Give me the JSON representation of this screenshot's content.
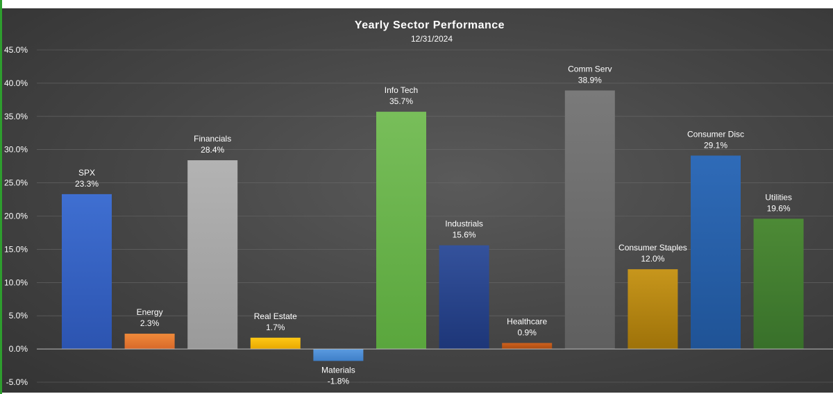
{
  "chart_data": {
    "type": "bar",
    "title": "Yearly Sector Performance",
    "subtitle": "12/31/2024",
    "xlabel": "",
    "ylabel": "",
    "ylim": [
      -5,
      45
    ],
    "yticks": [
      "-5.0%",
      "0.0%",
      "5.0%",
      "10.0%",
      "15.0%",
      "20.0%",
      "25.0%",
      "30.0%",
      "35.0%",
      "40.0%",
      "45.0%"
    ],
    "ytick_values": [
      -5,
      0,
      5,
      10,
      15,
      20,
      25,
      30,
      35,
      40,
      45
    ],
    "grid": true,
    "bars": [
      {
        "name": "SPX",
        "value": 23.3,
        "label": "23.3%",
        "color": "#3f6fd1",
        "color2": "#2c54b0"
      },
      {
        "name": "Energy",
        "value": 2.3,
        "label": "2.3%",
        "color": "#f08a3a",
        "color2": "#d8692a"
      },
      {
        "name": "Financials",
        "value": 28.4,
        "label": "28.4%",
        "color": "#b3b3b3",
        "color2": "#9a9a9a"
      },
      {
        "name": "Real Estate",
        "value": 1.7,
        "label": "1.7%",
        "color": "#ffc816",
        "color2": "#e8a800"
      },
      {
        "name": "Materials",
        "value": -1.8,
        "label": "-1.8%",
        "color": "#5b9be0",
        "color2": "#3f7fc8"
      },
      {
        "name": "Info Tech",
        "value": 35.7,
        "label": "35.7%",
        "color": "#78be5a",
        "color2": "#5aa63d"
      },
      {
        "name": "Industrials",
        "value": 15.6,
        "label": "15.6%",
        "color": "#34529c",
        "color2": "#1d3678"
      },
      {
        "name": "Healthcare",
        "value": 0.9,
        "label": "0.9%",
        "color": "#d0621e",
        "color2": "#a84a10"
      },
      {
        "name": "Comm Serv",
        "value": 38.9,
        "label": "38.9%",
        "color": "#7a7a7a",
        "color2": "#5f5f5f"
      },
      {
        "name": "Consumer Staples",
        "value": 12.0,
        "label": "12.0%",
        "color": "#c7961c",
        "color2": "#9e7209"
      },
      {
        "name": "Consumer Disc",
        "value": 29.1,
        "label": "29.1%",
        "color": "#2f6bb8",
        "color2": "#1f5396"
      },
      {
        "name": "Utilities",
        "value": 19.6,
        "label": "19.6%",
        "color": "#4d8a36",
        "color2": "#38702a"
      }
    ]
  }
}
